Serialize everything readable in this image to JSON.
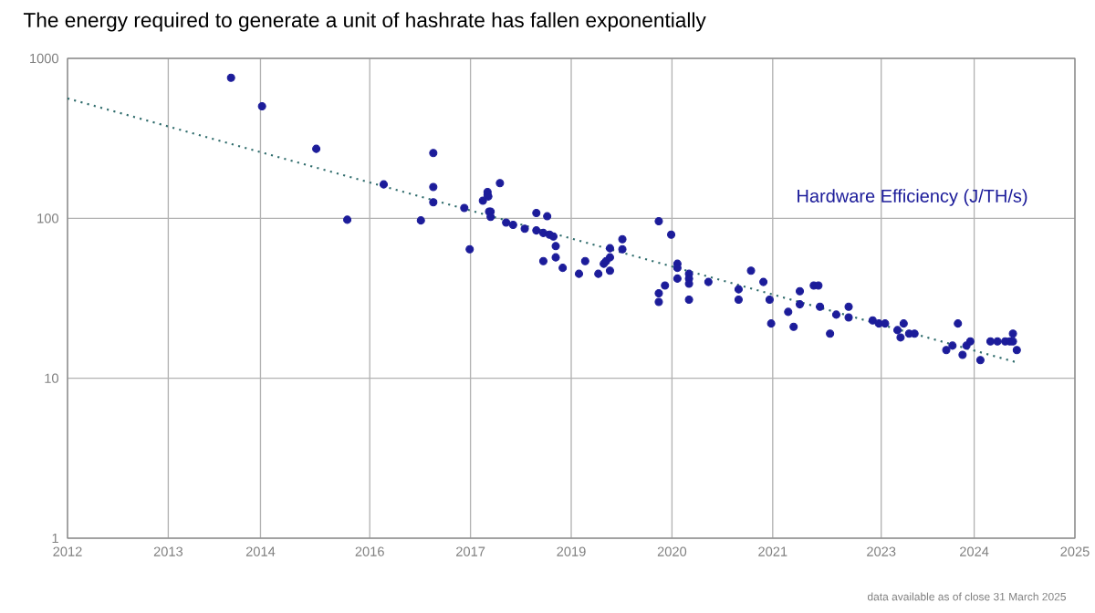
{
  "chart_data": {
    "type": "scatter",
    "title": "The energy required to generate a unit of hashrate has fallen exponentially",
    "annotations": [
      "data available as of close 31 March 2025"
    ],
    "log": "y",
    "grid": true,
    "legend": false,
    "xlim": [
      2012,
      2025
    ],
    "ylim": [
      1,
      1000
    ],
    "xticks": [
      {
        "value": 2012,
        "label": "2012"
      },
      {
        "value": 2013.3,
        "label": "2013"
      },
      {
        "value": 2014.49,
        "label": "2014"
      },
      {
        "value": 2015.9,
        "label": "2016"
      },
      {
        "value": 2017.2,
        "label": "2017"
      },
      {
        "value": 2018.5,
        "label": "2019"
      },
      {
        "value": 2019.8,
        "label": "2020"
      },
      {
        "value": 2021.1,
        "label": "2021"
      },
      {
        "value": 2022.5,
        "label": "2023"
      },
      {
        "value": 2023.7,
        "label": "2024"
      },
      {
        "value": 2025,
        "label": "2025"
      }
    ],
    "yticks": [
      1,
      10,
      100,
      1000
    ],
    "series": [
      {
        "name": "Hardware Efficiency (J/TH/s)",
        "type": "scatter",
        "marker": "circle",
        "color": "#1c1c9a",
        "x": [
          2014.11,
          2014.51,
          2015.21,
          2015.61,
          2016.08,
          2016.56,
          2016.72,
          2016.72,
          2016.72,
          2017.12,
          2017.19,
          2017.36,
          2017.42,
          2017.42,
          2017.43,
          2017.58,
          2017.44,
          2017.46,
          2017.46,
          2017.66,
          2017.75,
          2017.9,
          2018.05,
          2018.05,
          2018.14,
          2018.14,
          2018.19,
          2018.22,
          2018.27,
          2018.3,
          2018.3,
          2018.39,
          2018.6,
          2018.68,
          2018.85,
          2018.92,
          2018.95,
          2019.0,
          2019.0,
          2019.0,
          2019.16,
          2019.16,
          2019.63,
          2019.79,
          2019.63,
          2019.63,
          2019.71,
          2019.87,
          2019.87,
          2019.87,
          2020.02,
          2020.02,
          2020.02,
          2020.02,
          2020.27,
          2020.66,
          2020.66,
          2020.82,
          2020.98,
          2021.06,
          2021.08,
          2021.3,
          2021.37,
          2021.45,
          2021.45,
          2021.63,
          2021.69,
          2021.71,
          2021.84,
          2021.92,
          2022.08,
          2022.08,
          2022.39,
          2022.47,
          2022.55,
          2022.71,
          2022.75,
          2022.79,
          2022.86,
          2022.93,
          2023.34,
          2023.42,
          2023.49,
          2023.55,
          2023.6,
          2023.65,
          2023.78,
          2023.91,
          2024.0,
          2024.1,
          2024.16,
          2024.2,
          2024.2,
          2024.25
        ],
        "values": [
          757,
          502,
          272,
          98,
          163,
          97,
          256,
          157,
          126,
          116,
          64,
          129,
          140,
          146,
          137,
          166,
          110,
          110,
          102,
          94,
          91,
          86,
          108,
          84,
          81,
          54,
          103,
          79,
          77,
          67,
          57,
          49,
          45,
          54,
          45,
          52,
          54,
          57,
          65,
          47,
          74,
          64,
          96,
          79,
          34,
          30,
          38,
          52,
          49,
          42,
          45,
          42,
          39,
          31,
          40,
          36,
          31,
          47,
          40,
          31,
          22,
          26,
          21,
          35,
          29,
          38,
          38,
          28,
          19,
          25,
          28,
          24,
          23,
          22,
          22,
          20,
          18,
          22,
          19,
          19,
          15,
          16,
          22,
          14,
          16,
          17,
          13,
          17,
          17,
          17,
          17,
          19,
          17,
          15
        ]
      },
      {
        "type": "line",
        "marker": "none",
        "line_style": "dotted",
        "color": "#2e6b6b",
        "x": [
          2012,
          2024.24
        ],
        "values": [
          562,
          12.6
        ]
      }
    ]
  }
}
